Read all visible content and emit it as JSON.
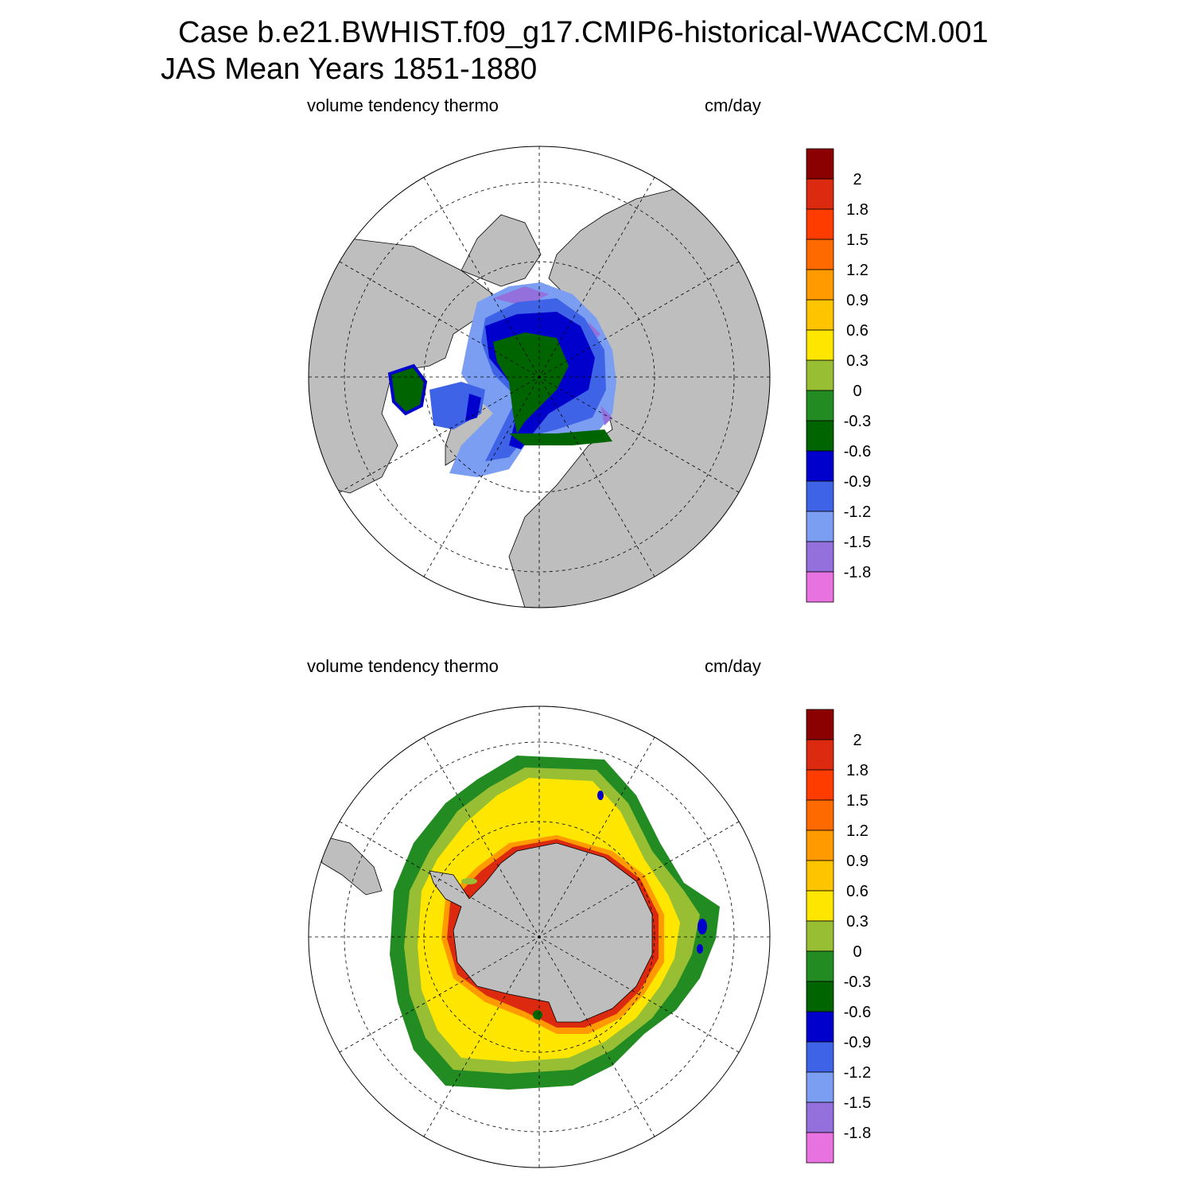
{
  "header": {
    "title_line1": "Case b.e21.BWHIST.f09_g17.CMIP6-historical-WACCM.001",
    "title_line2": "JAS Mean   Years 1851-1880"
  },
  "panels": [
    {
      "id": "north",
      "hemisphere": "north",
      "left_label": "volume tendency thermo",
      "right_label": "cm/day"
    },
    {
      "id": "south",
      "hemisphere": "south",
      "left_label": "volume tendency thermo",
      "right_label": "cm/day"
    }
  ],
  "colors": {
    "land": "#bebebe",
    "ocean_no_ice": "#ffffff",
    "grid_line": "#000000"
  },
  "colorbar": {
    "labels": [
      "2",
      "1.8",
      "1.5",
      "1.2",
      "0.9",
      "0.6",
      "0.3",
      "0",
      "-0.3",
      "-0.6",
      "-0.9",
      "-1.2",
      "-1.5",
      "-1.8"
    ],
    "colors_top_to_bottom": [
      "#8b0000",
      "#dc2a10",
      "#ff3c00",
      "#ff6a00",
      "#ff9a00",
      "#ffc400",
      "#ffe600",
      "#98bf33",
      "#228b22",
      "#006400",
      "#0000cd",
      "#3f63e6",
      "#7b9ef2",
      "#9370db",
      "#e873e0"
    ]
  },
  "chart_data": [
    {
      "type": "heatmap",
      "map": "polar stereographic, northern hemisphere",
      "title": "volume tendency thermo",
      "units": "cm/day",
      "contour_levels": [
        -1.8,
        -1.5,
        -1.2,
        -0.9,
        -0.6,
        -0.3,
        0,
        0.3,
        0.6,
        0.9,
        1.2,
        1.5,
        1.8,
        2
      ],
      "regions": [
        {
          "region": "central Arctic Ocean",
          "value_range": [
            -0.6,
            -0.3
          ]
        },
        {
          "region": "ring around central Arctic",
          "value_range": [
            -0.9,
            -0.6
          ]
        },
        {
          "region": "Siberian shelf seas",
          "value_range": [
            -1.5,
            -0.9
          ]
        },
        {
          "region": "Hudson Bay",
          "value_range": [
            -0.6,
            -0.3
          ]
        },
        {
          "region": "Baffin Bay / Canadian Archipelago",
          "value_range": [
            -1.8,
            -0.6
          ]
        },
        {
          "region": "Fram Strait / East Greenland",
          "value_range": [
            -1.2,
            -0.3
          ]
        }
      ]
    },
    {
      "type": "heatmap",
      "map": "polar stereographic, southern hemisphere",
      "title": "volume tendency thermo",
      "units": "cm/day",
      "contour_levels": [
        -1.8,
        -1.5,
        -1.2,
        -0.9,
        -0.6,
        -0.3,
        0,
        0.3,
        0.6,
        0.9,
        1.2,
        1.5,
        1.8,
        2
      ],
      "regions": [
        {
          "region": "interior sea-ice pack",
          "value_range": [
            0.3,
            0.6
          ]
        },
        {
          "region": "Antarctic coastal margin",
          "value_range": [
            0.6,
            2.0
          ]
        },
        {
          "region": "ice edge band",
          "value_range": [
            -0.3,
            0.3
          ]
        },
        {
          "region": "outer ice edge",
          "value_range": [
            -0.6,
            0
          ]
        },
        {
          "region": "isolated spots near ice edge",
          "value_range": [
            -1.2,
            -0.6
          ]
        }
      ]
    }
  ]
}
